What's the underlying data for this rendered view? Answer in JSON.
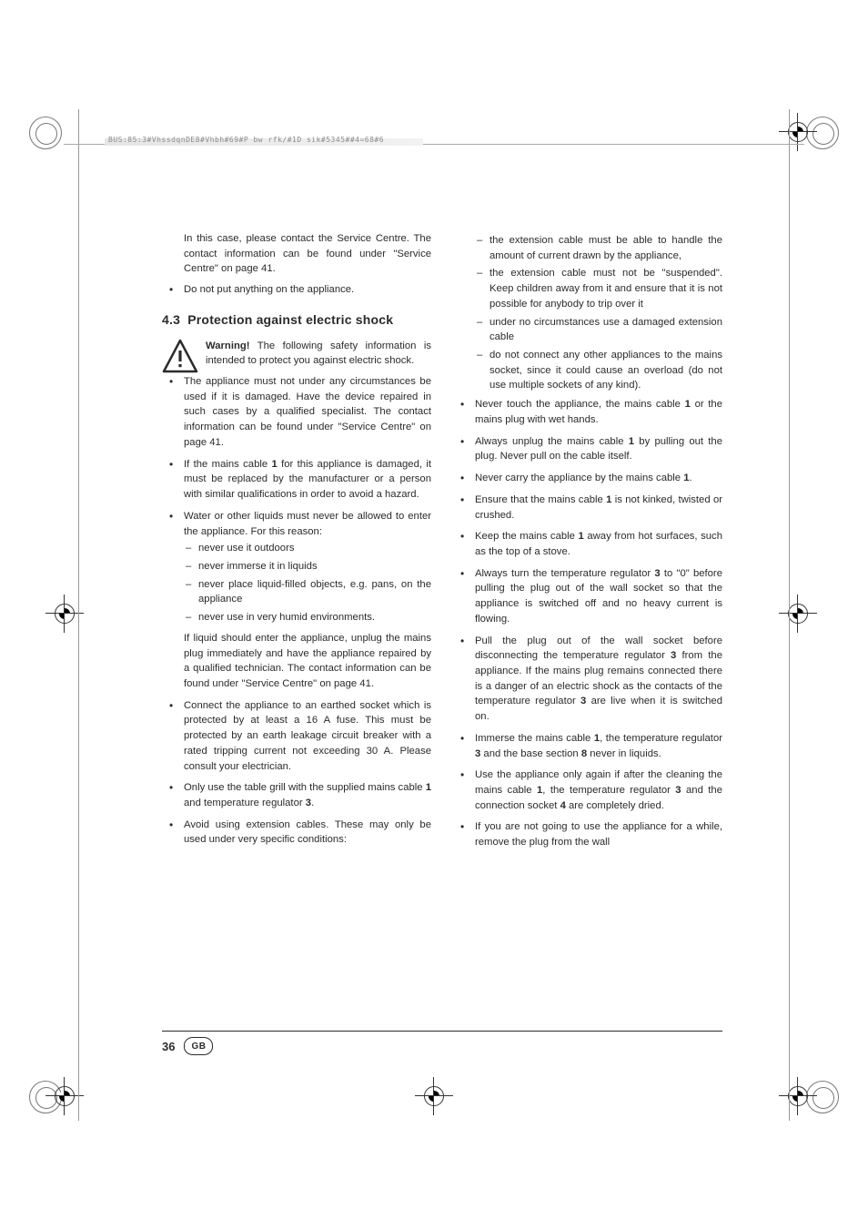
{
  "header_marker": "BUS:85:3#VhssdqnDE8#Vhbh#69#P  bw rfk/#1D sik#5345##4=68#6",
  "intro": "In this case, please contact the Service Centre. The contact information can be found under \"Service Centre\" on page 41.",
  "left_pre_bullets": [
    "Do not put anything on the appliance."
  ],
  "section_num": "4.3",
  "section_title": "Protection against electric shock",
  "warning_label": "Warning!",
  "warning_text": " The following safety information is intended to protect you against electric shock.",
  "left_bullets_main": [
    "The appliance must not under any circumstances be used if it is damaged. Have the device repaired in such cases by a qualified specialist. The contact information can be found under \"Service Centre\" on page 41.",
    "If the mains cable 1 for this appliance is damaged, it must be replaced by the manufacturer or a person with similar qualifications in order to avoid a hazard."
  ],
  "water_intro": "Water or other liquids must never be allowed to enter the appliance. For this reason:",
  "water_dashes": [
    "never use it outdoors",
    "never immerse it in liquids",
    "never place liquid-filled objects, e.g. pans, on the appliance",
    "never use in very humid environments."
  ],
  "liquid_follow": "If liquid should enter the appliance, unplug the mains plug immediately and have the appliance repaired by a qualified technician. The contact information can be found under \"Service Centre\" on page 41.",
  "left_bullets_tail": [
    "Connect the appliance to an earthed socket which is protected by at least a 16 A fuse. This must be protected by an earth leakage circuit breaker with a rated tripping current not exceeding 30 A. Please consult your electrician.",
    "Only use the table grill with the supplied mains cable 1 and temperature regulator 3.",
    "Avoid using extension cables. These may only be used under very specific conditions:"
  ],
  "right_dashes": [
    "the extension cable must be able to handle the amount of current drawn by the appliance,",
    "the extension cable must not be \"suspended\". Keep children away from it and ensure that it is not possible for anybody to trip over it",
    "under no circumstances use a damaged extension cable",
    "do not connect any other appliances to the mains socket, since it could cause an overload (do not use multiple sockets of any kind)."
  ],
  "right_bullets": [
    "Never touch the appliance, the mains cable 1 or the mains plug with wet hands.",
    "Always unplug the mains cable 1 by pulling out the plug. Never pull on the cable itself.",
    "Never carry the appliance by the mains cable 1.",
    "Ensure that the mains cable 1 is not kinked, twisted or crushed.",
    "Keep the mains cable 1 away from hot surfaces, such as the top of a stove.",
    "Always turn the temperature regulator 3 to \"0\" before pulling the plug out of the wall socket so that the appliance is switched off and no heavy current is flowing.",
    "Pull the plug out of the wall socket before disconnecting the temperature regulator 3 from the appliance. If the mains plug remains connected there is a danger of an electric shock as the contacts of the temperature regulator 3 are live when it is switched on.",
    "Immerse the mains cable 1, the temperature regulator 3 and the base section 8 never in liquids.",
    "Use the appliance only again if after the cleaning the mains cable 1, the temperature regulator 3 and the connection socket 4 are completely dried.",
    "If you are not going to use the appliance for a while, remove the plug from the wall"
  ],
  "bold_map": {
    "1": true,
    "3": true,
    "4": true,
    "8": true
  },
  "page_number": "36",
  "country_code": "GB",
  "colors": {
    "text": "#2b2b2b",
    "marker": "#8a8a8a",
    "rule": "#2b2b2b",
    "bg": "#ffffff"
  }
}
